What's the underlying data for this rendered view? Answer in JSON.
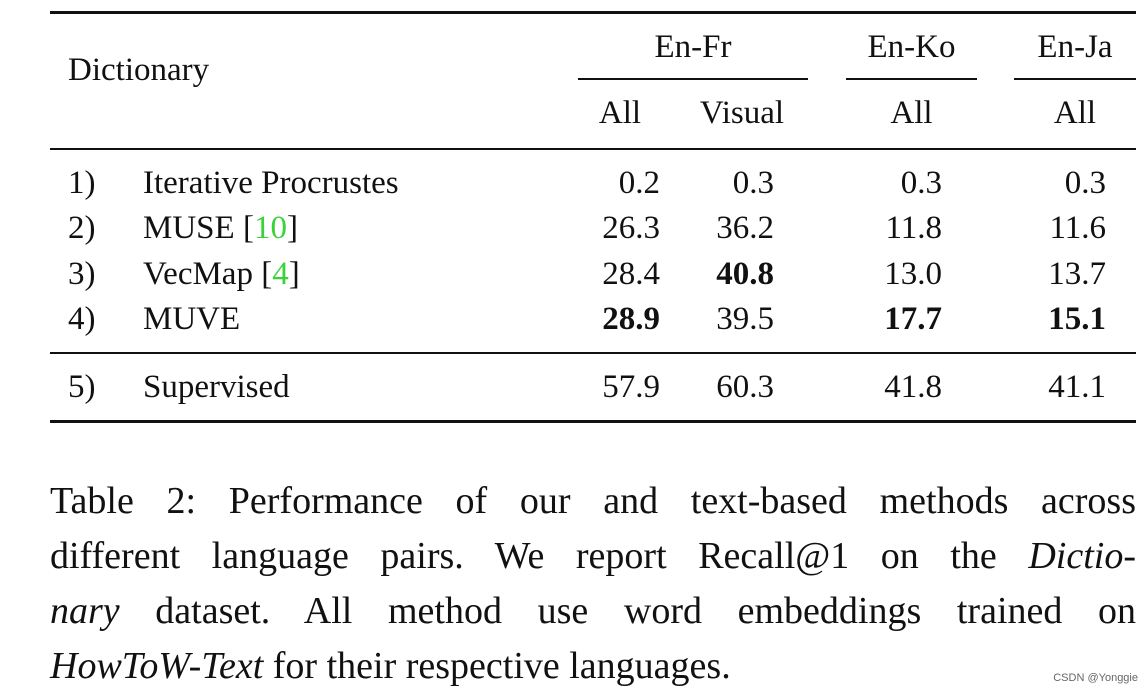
{
  "table": {
    "header": {
      "dictionary_label": "Dictionary",
      "groups": [
        "En-Fr",
        "En-Ko",
        "En-Ja"
      ],
      "subheaders": [
        "All",
        "Visual",
        "All",
        "All"
      ]
    },
    "rows": [
      {
        "index": "1)",
        "method": "Iterative Procrustes",
        "ref": "",
        "values": [
          "0.2",
          "0.3",
          "0.3",
          "0.3"
        ],
        "bold": [
          false,
          false,
          false,
          false
        ]
      },
      {
        "index": "2)",
        "method": "MUSE",
        "ref": "10",
        "values": [
          "26.3",
          "36.2",
          "11.8",
          "11.6"
        ],
        "bold": [
          false,
          false,
          false,
          false
        ]
      },
      {
        "index": "3)",
        "method": "VecMap",
        "ref": "4",
        "values": [
          "28.4",
          "40.8",
          "13.0",
          "13.7"
        ],
        "bold": [
          false,
          true,
          false,
          false
        ]
      },
      {
        "index": "4)",
        "method": "MUVE",
        "ref": "",
        "values": [
          "28.9",
          "39.5",
          "17.7",
          "15.1"
        ],
        "bold": [
          true,
          false,
          true,
          true
        ]
      },
      {
        "index": "5)",
        "method": "Supervised",
        "ref": "",
        "values": [
          "57.9",
          "60.3",
          "41.8",
          "41.1"
        ],
        "bold": [
          false,
          false,
          false,
          false
        ]
      }
    ]
  },
  "caption": {
    "l1": "Table 2: Performance of our and text-based methods across",
    "l2a": "different language pairs. We report Recall@1 on the ",
    "l2b": "Dictio-",
    "l3a": "nary",
    "l3b": " dataset. All method use word embeddings trained on",
    "l4a": "HowToW-Text",
    "l4b": " for their respective languages."
  },
  "watermark": "CSDN @Yonggie",
  "colors": {
    "reference_link": "#3ad13a",
    "text": "#111111"
  }
}
